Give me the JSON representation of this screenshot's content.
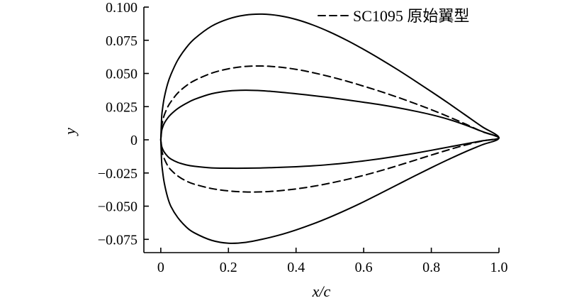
{
  "chart_data": {
    "type": "line",
    "title": "",
    "xlabel": "x/c",
    "ylabel": "y",
    "xlim": [
      -0.05,
      1.0
    ],
    "ylim": [
      -0.085,
      0.1
    ],
    "x_ticks": [
      0,
      0.2,
      0.4,
      0.6,
      0.8,
      1.0
    ],
    "x_tick_labels": [
      "0",
      "0.2",
      "0.4",
      "0.6",
      "0.8",
      "1.0"
    ],
    "y_ticks": [
      -0.075,
      -0.05,
      -0.025,
      0,
      0.025,
      0.05,
      0.075,
      0.1
    ],
    "y_tick_labels": [
      "−0.075",
      "−0.050",
      "−0.025",
      "0",
      "0.025",
      "0.050",
      "0.075",
      "0.100"
    ],
    "grid": false,
    "legend_position": "top-right",
    "legend": [
      {
        "label": "SC1095 原始翼型",
        "style": "dashed"
      }
    ],
    "series": [
      {
        "name": "SC1095 原始翼型",
        "style": "dashed",
        "x": [
          0,
          0.0025,
          0.005,
          0.01,
          0.02,
          0.03,
          0.05,
          0.075,
          0.1,
          0.15,
          0.2,
          0.25,
          0.3,
          0.35,
          0.4,
          0.45,
          0.5,
          0.55,
          0.6,
          0.65,
          0.7,
          0.75,
          0.8,
          0.85,
          0.9,
          0.95,
          1.0,
          0.95,
          0.9,
          0.85,
          0.8,
          0.75,
          0.7,
          0.65,
          0.6,
          0.55,
          0.5,
          0.45,
          0.4,
          0.35,
          0.3,
          0.25,
          0.2,
          0.15,
          0.1,
          0.075,
          0.05,
          0.03,
          0.02,
          0.01,
          0.005,
          0.0025,
          0
        ],
        "y": [
          0,
          0.0098,
          0.0135,
          0.0184,
          0.0245,
          0.0287,
          0.0352,
          0.0407,
          0.0447,
          0.0502,
          0.0535,
          0.0553,
          0.0556,
          0.0548,
          0.0531,
          0.0506,
          0.0476,
          0.0442,
          0.0404,
          0.0364,
          0.0321,
          0.0275,
          0.0227,
          0.0175,
          0.012,
          0.0062,
          0.0015,
          -0.0009,
          -0.004,
          -0.0076,
          -0.0115,
          -0.0155,
          -0.0195,
          -0.0233,
          -0.0268,
          -0.0299,
          -0.0327,
          -0.0351,
          -0.037,
          -0.0384,
          -0.0392,
          -0.0393,
          -0.0385,
          -0.0367,
          -0.0335,
          -0.031,
          -0.0272,
          -0.0227,
          -0.0193,
          -0.0141,
          -0.0102,
          -0.0073,
          0
        ]
      },
      {
        "style": "solid",
        "x": [
          0,
          0.0025,
          0.005,
          0.01,
          0.02,
          0.03,
          0.05,
          0.075,
          0.1,
          0.15,
          0.2,
          0.25,
          0.3,
          0.35,
          0.4,
          0.45,
          0.5,
          0.55,
          0.6,
          0.65,
          0.7,
          0.75,
          0.8,
          0.85,
          0.9,
          0.95,
          1.0,
          0.95,
          0.9,
          0.85,
          0.8,
          0.75,
          0.7,
          0.65,
          0.6,
          0.55,
          0.5,
          0.45,
          0.4,
          0.35,
          0.3,
          0.25,
          0.2,
          0.15,
          0.1,
          0.075,
          0.05,
          0.03,
          0.02,
          0.01,
          0.005,
          0.0025,
          0
        ],
        "y": [
          0,
          0.0167,
          0.023,
          0.0314,
          0.042,
          0.0492,
          0.06,
          0.0693,
          0.0762,
          0.0856,
          0.0911,
          0.094,
          0.0947,
          0.0935,
          0.0907,
          0.0865,
          0.0812,
          0.075,
          0.0681,
          0.0607,
          0.0529,
          0.0447,
          0.0363,
          0.0277,
          0.0188,
          0.0099,
          0.0015,
          -0.0038,
          -0.0091,
          -0.0149,
          -0.021,
          -0.0273,
          -0.0338,
          -0.0403,
          -0.0467,
          -0.0527,
          -0.0583,
          -0.0634,
          -0.0679,
          -0.0718,
          -0.0749,
          -0.0773,
          -0.0779,
          -0.0757,
          -0.0702,
          -0.0656,
          -0.0585,
          -0.0502,
          -0.0431,
          -0.032,
          -0.023,
          -0.0165,
          0
        ]
      },
      {
        "style": "solid",
        "x": [
          0,
          0.0025,
          0.005,
          0.01,
          0.02,
          0.03,
          0.05,
          0.075,
          0.1,
          0.15,
          0.2,
          0.25,
          0.3,
          0.35,
          0.4,
          0.45,
          0.5,
          0.55,
          0.6,
          0.65,
          0.7,
          0.75,
          0.8,
          0.85,
          0.9,
          0.95,
          1.0,
          0.95,
          0.9,
          0.85,
          0.8,
          0.75,
          0.7,
          0.65,
          0.6,
          0.55,
          0.5,
          0.45,
          0.4,
          0.35,
          0.3,
          0.25,
          0.2,
          0.15,
          0.1,
          0.075,
          0.05,
          0.03,
          0.02,
          0.01,
          0.005,
          0.0025,
          0
        ],
        "y": [
          0,
          0.0065,
          0.009,
          0.0123,
          0.0163,
          0.0192,
          0.0235,
          0.0274,
          0.0305,
          0.0347,
          0.0368,
          0.0374,
          0.037,
          0.036,
          0.0347,
          0.0333,
          0.0318,
          0.0301,
          0.0283,
          0.0264,
          0.0242,
          0.0217,
          0.0189,
          0.0155,
          0.0112,
          0.0063,
          0.0015,
          -0.0008,
          -0.0031,
          -0.0055,
          -0.0079,
          -0.0102,
          -0.0123,
          -0.0142,
          -0.0159,
          -0.0174,
          -0.0186,
          -0.0196,
          -0.0203,
          -0.0208,
          -0.0212,
          -0.0214,
          -0.0214,
          -0.0212,
          -0.02,
          -0.0189,
          -0.017,
          -0.0145,
          -0.0124,
          -0.0092,
          -0.0066,
          -0.0047,
          0
        ]
      }
    ]
  }
}
